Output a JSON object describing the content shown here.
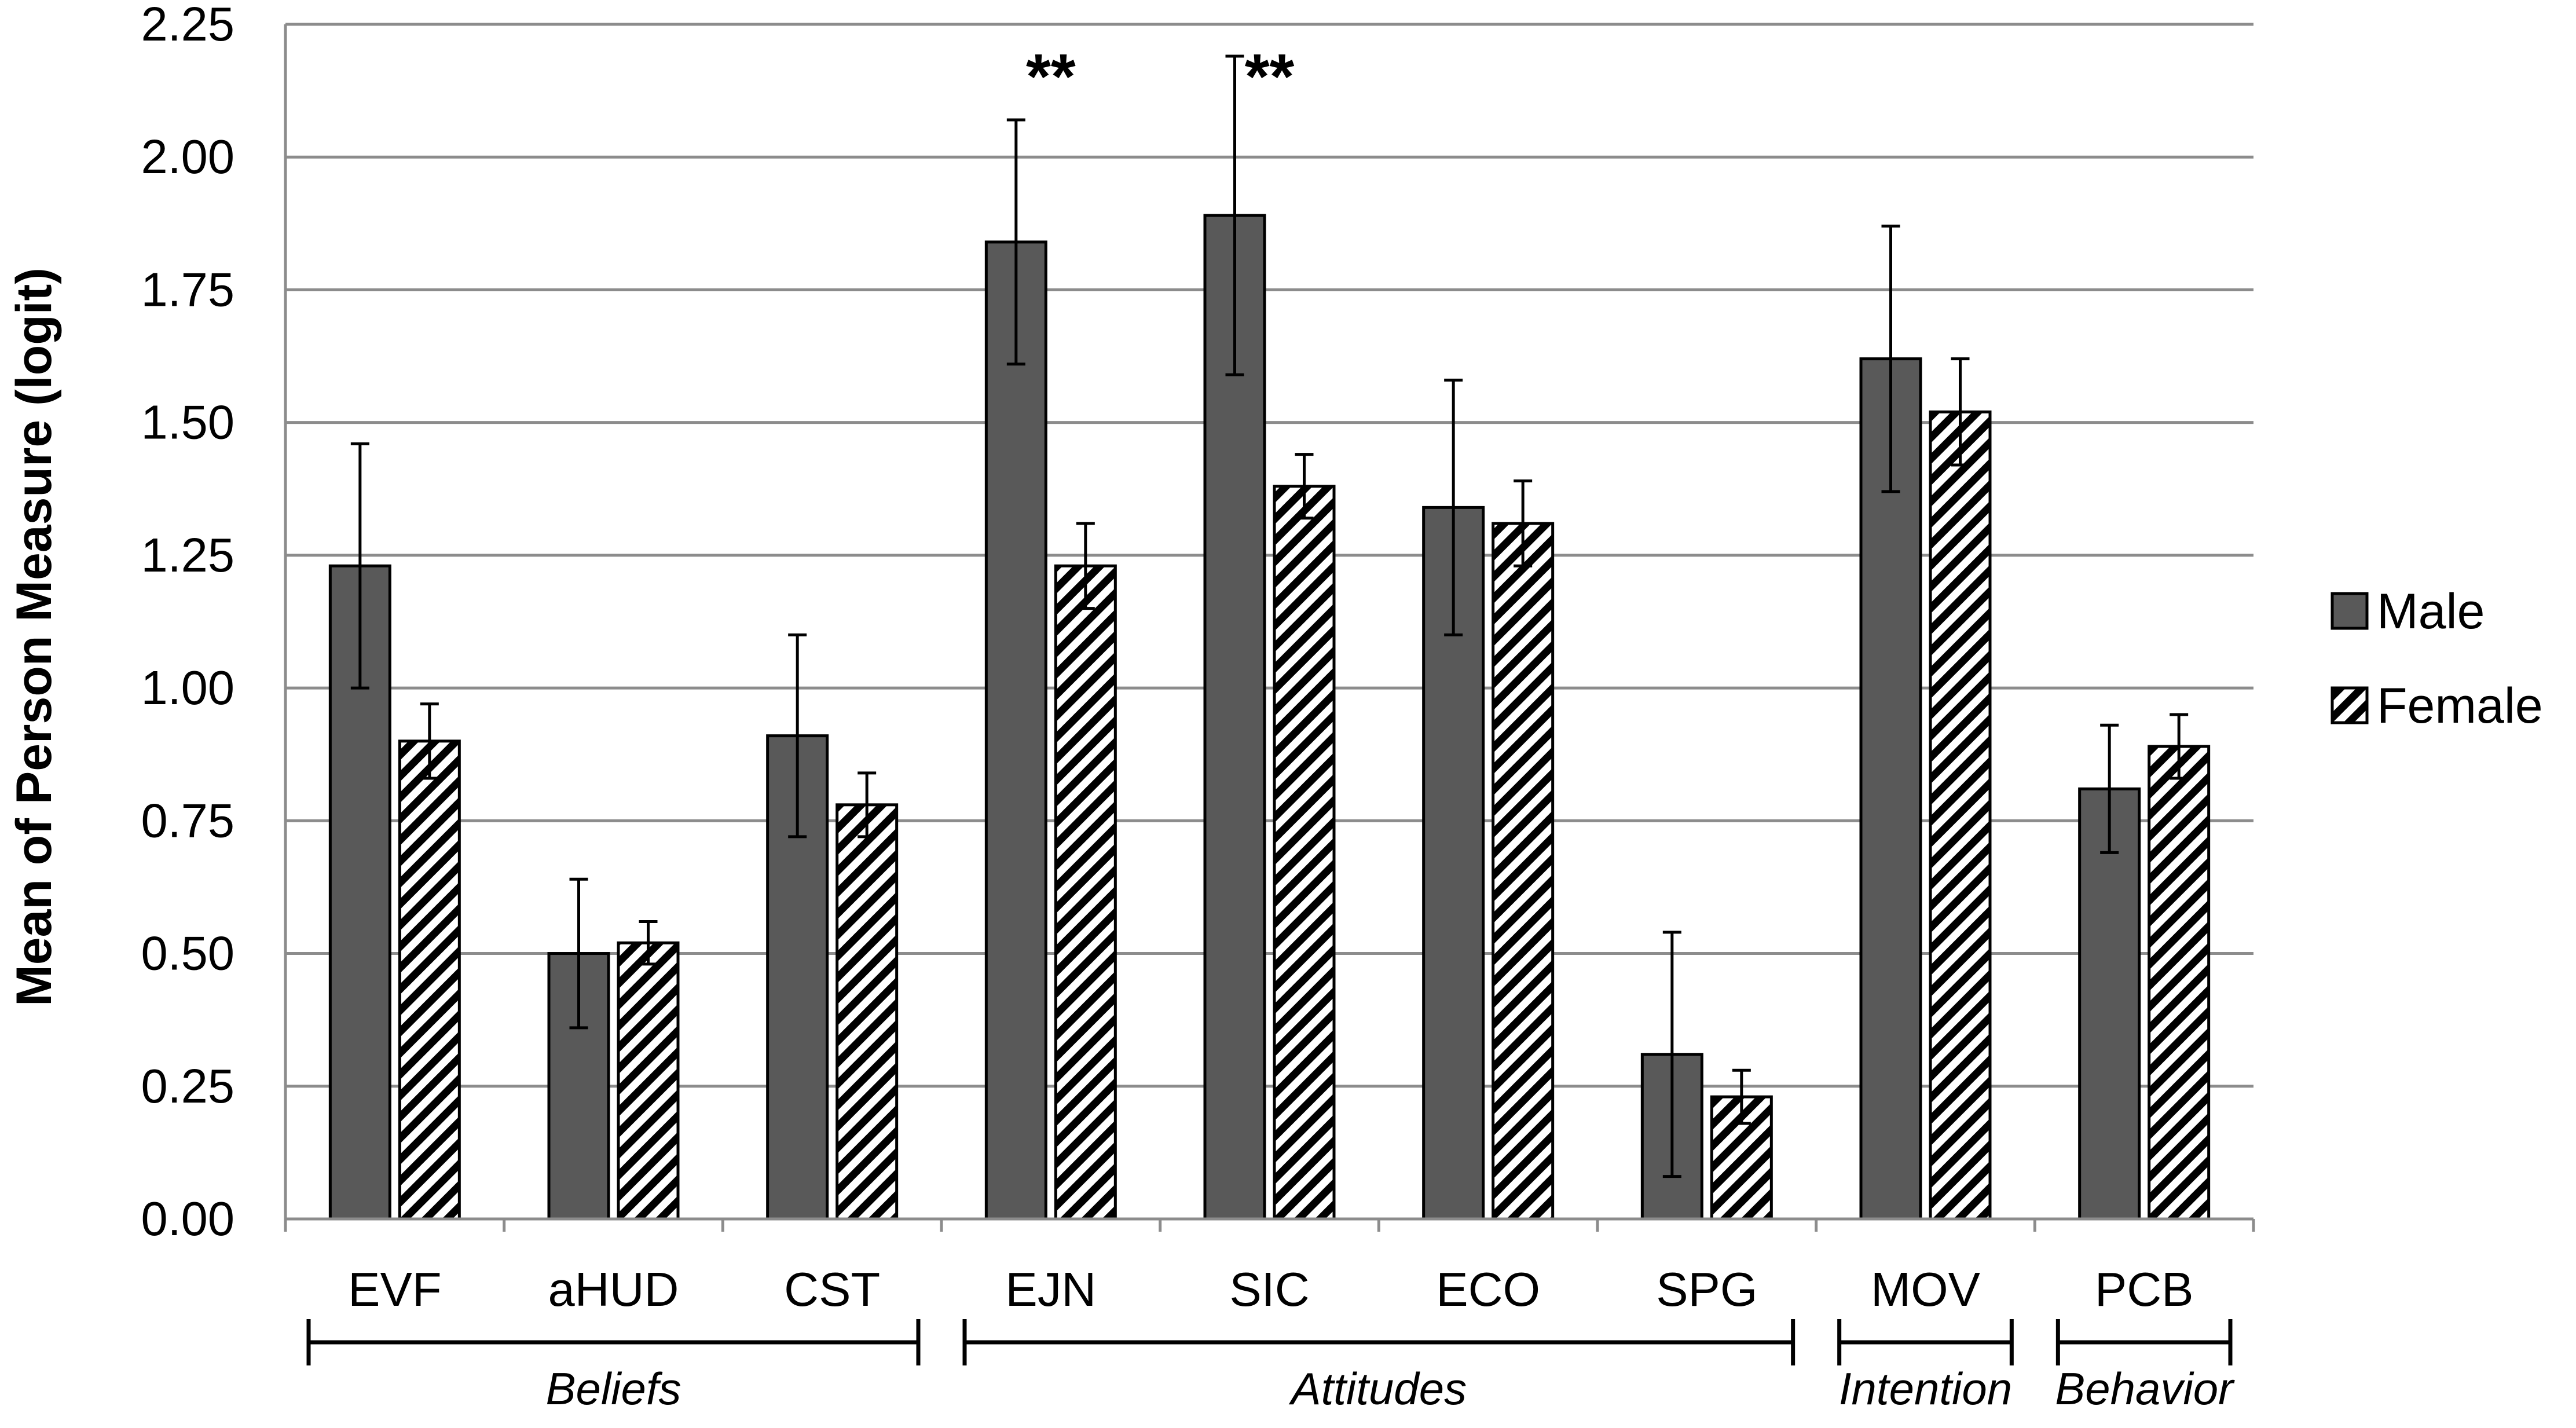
{
  "chart_data": {
    "type": "bar",
    "ylabel": "Mean of Person Measure (logit)",
    "ylim": [
      0,
      2.25
    ],
    "yticks": [
      "0.00",
      "0.25",
      "0.50",
      "0.75",
      "1.00",
      "1.25",
      "1.50",
      "1.75",
      "2.00",
      "2.25"
    ],
    "grid": true,
    "legend_position": "right",
    "categories": [
      "EVF",
      "aHUD",
      "CST",
      "EJN",
      "SIC",
      "ECO",
      "SPG",
      "MOV",
      "PCB"
    ],
    "series": [
      {
        "name": "Male",
        "color": "#595959",
        "pattern": "solid",
        "values": [
          1.23,
          0.5,
          0.91,
          1.84,
          1.89,
          1.34,
          0.31,
          1.62,
          0.81
        ],
        "error": [
          0.23,
          0.14,
          0.19,
          0.23,
          0.3,
          0.24,
          0.23,
          0.25,
          0.12
        ]
      },
      {
        "name": "Female",
        "color": "#000000",
        "pattern": "diagonal-hatch",
        "values": [
          0.9,
          0.52,
          0.78,
          1.23,
          1.38,
          1.31,
          0.23,
          1.52,
          0.89
        ],
        "error": [
          0.07,
          0.04,
          0.06,
          0.08,
          0.06,
          0.08,
          0.05,
          0.1,
          0.06
        ]
      }
    ],
    "significance": [
      {
        "category": "EJN",
        "label": "**"
      },
      {
        "category": "SIC",
        "label": "**"
      }
    ],
    "groups": [
      {
        "label": "Beliefs",
        "categories": [
          "EVF",
          "aHUD",
          "CST"
        ]
      },
      {
        "label": "Attitudes",
        "categories": [
          "EJN",
          "SIC",
          "ECO",
          "SPG"
        ]
      },
      {
        "label": "Intention",
        "categories": [
          "MOV"
        ]
      },
      {
        "label": "Behavior",
        "categories": [
          "PCB"
        ]
      }
    ]
  }
}
